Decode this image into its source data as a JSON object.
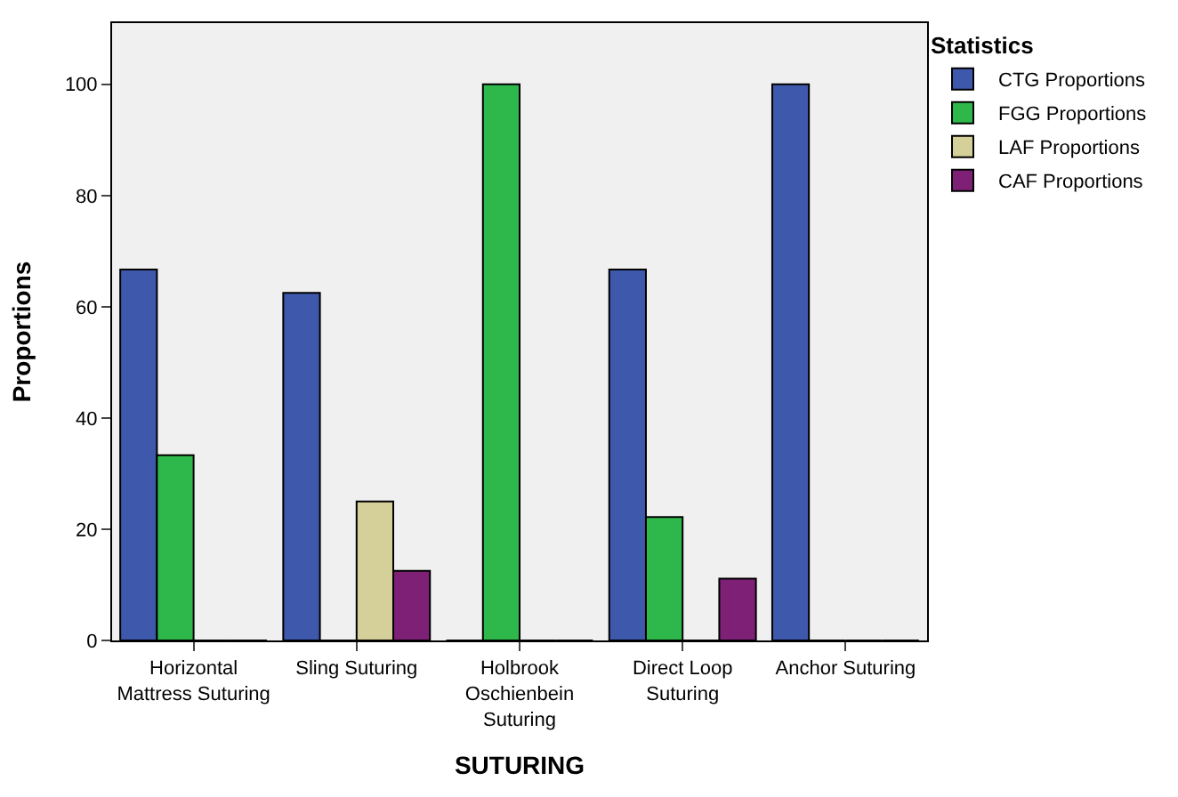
{
  "chart_data": {
    "type": "bar",
    "xlabel": "SUTURING",
    "ylabel": "Proportions",
    "legend_title": "Statistics",
    "categories": [
      "Horizontal\nMattress Suturing",
      "Sling Suturing",
      "Holbrook\nOschienbein\nSuturing",
      "Direct Loop\nSuturing",
      "Anchor Suturing"
    ],
    "series": [
      {
        "name": "CTG Proportions",
        "color": "#3e58ac",
        "values": [
          66.7,
          62.5,
          0,
          66.7,
          100
        ]
      },
      {
        "name": "FGG Proportions",
        "color": "#2eb84b",
        "values": [
          33.3,
          0,
          100,
          22.2,
          0
        ]
      },
      {
        "name": "LAF Proportions",
        "color": "#d5d09a",
        "values": [
          0,
          25,
          0,
          0,
          0
        ]
      },
      {
        "name": "CAF Proportions",
        "color": "#7f2077",
        "values": [
          0,
          12.5,
          0,
          11.1,
          0
        ]
      }
    ],
    "ylim": [
      0,
      111
    ],
    "yticks": [
      0,
      20,
      40,
      60,
      80,
      100
    ],
    "grid": false,
    "legend": "top right"
  }
}
